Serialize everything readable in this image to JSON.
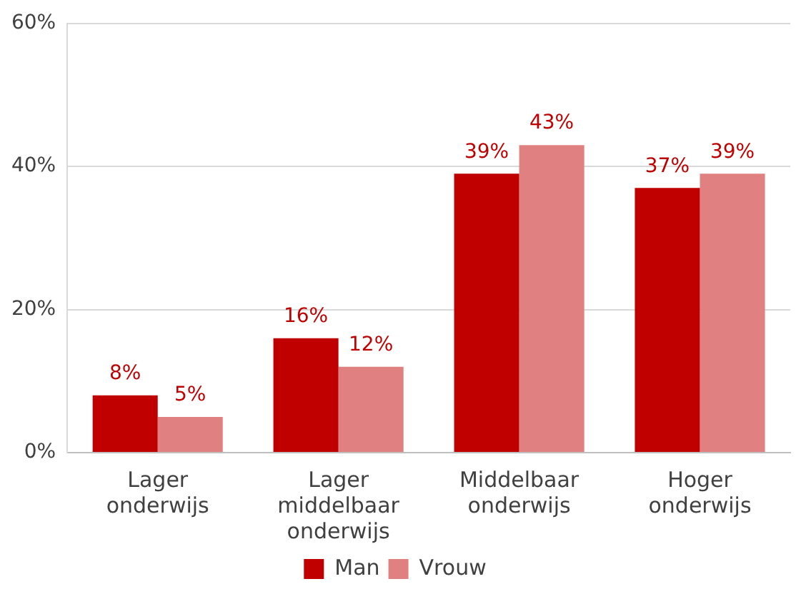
{
  "chart_data": {
    "type": "bar",
    "categories": [
      "Lager onderwijs",
      "Lager middelbaar onderwijs",
      "Middelbaar onderwijs",
      "Hoger onderwijs"
    ],
    "series": [
      {
        "name": "Man",
        "color": "#c00000",
        "values": [
          8,
          16,
          39,
          37
        ],
        "value_labels": [
          "8%",
          "16%",
          "39%",
          "37%"
        ]
      },
      {
        "name": "Vrouw",
        "color": "#e08080",
        "values": [
          5,
          12,
          43,
          39
        ],
        "value_labels": [
          "5%",
          "12%",
          "43%",
          "39%"
        ]
      }
    ],
    "ylim": [
      0,
      60
    ],
    "yticks": [
      {
        "value": 0,
        "label": "0%"
      },
      {
        "value": 20,
        "label": "20%"
      },
      {
        "value": 40,
        "label": "40%"
      },
      {
        "value": 60,
        "label": "60%"
      }
    ],
    "grid": "y",
    "legend": "bottom"
  }
}
